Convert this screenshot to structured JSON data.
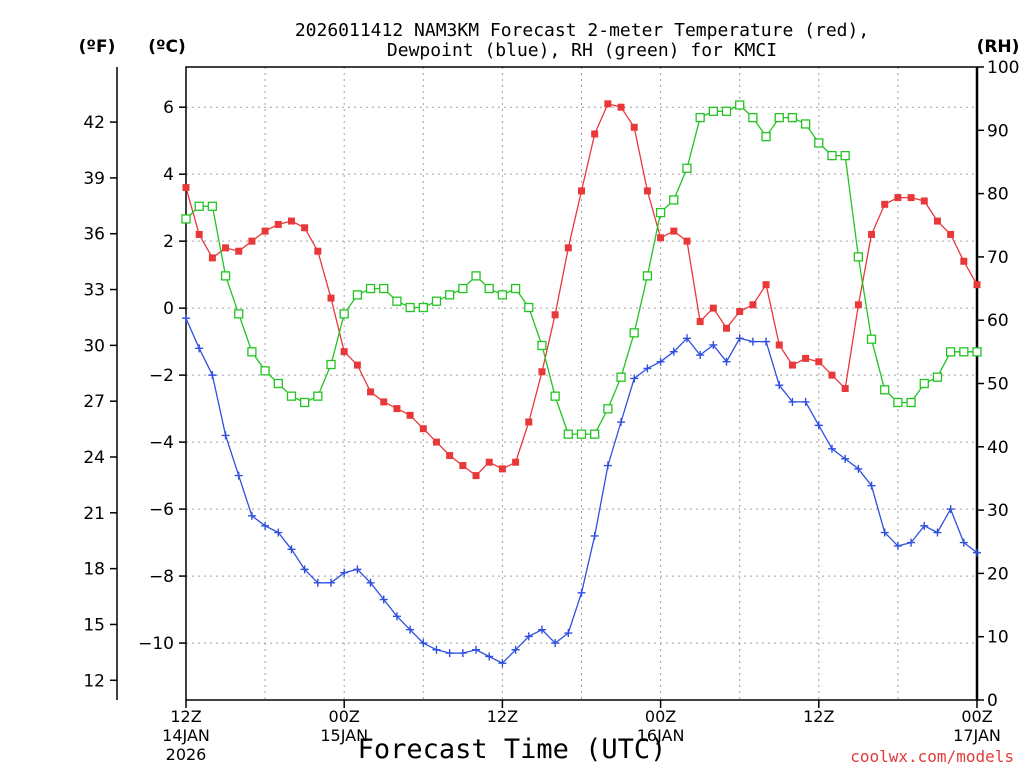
{
  "chart_data": {
    "type": "line",
    "title_line1": "2026011412 NAM3KM Forecast 2-meter Temperature (red),",
    "title_line2": "Dewpoint (blue), RH (green) for KMCI",
    "xlabel": "Forecast Time (UTC)",
    "left_unit_f": "(ºF)",
    "left_unit_c": "(ºC)",
    "right_unit": "(RH)",
    "credit": "coolwx.com/models",
    "x_range_hours": [
      0,
      60
    ],
    "x_ticks": [
      {
        "hour": 0,
        "line1": "12Z",
        "line2": "14JAN",
        "line3": "2026"
      },
      {
        "hour": 12,
        "line1": "00Z",
        "line2": "15JAN",
        "line3": ""
      },
      {
        "hour": 24,
        "line1": "12Z",
        "line2": "",
        "line3": ""
      },
      {
        "hour": 36,
        "line1": "00Z",
        "line2": "16JAN",
        "line3": ""
      },
      {
        "hour": 48,
        "line1": "12Z",
        "line2": "",
        "line3": ""
      },
      {
        "hour": 60,
        "line1": "00Z",
        "line2": "17JAN",
        "line3": ""
      }
    ],
    "y_celsius_range": [
      -11.7,
      7.2
    ],
    "y_celsius_ticks": [
      "6",
      "4",
      "2",
      "0",
      "−2",
      "−4",
      "−6",
      "−8",
      "−10"
    ],
    "y_celsius_tick_values": [
      6,
      4,
      2,
      0,
      -2,
      -4,
      -6,
      -8,
      -10
    ],
    "y_fahrenheit_ticks": [
      "42",
      "39",
      "36",
      "33",
      "30",
      "27",
      "24",
      "21",
      "18",
      "15",
      "12"
    ],
    "y_fahrenheit_tick_values": [
      42,
      39,
      36,
      33,
      30,
      27,
      24,
      21,
      18,
      15,
      12
    ],
    "y_rh_range": [
      0,
      100
    ],
    "y_rh_ticks": [
      "100",
      "90",
      "80",
      "70",
      "60",
      "50",
      "40",
      "30",
      "20",
      "10",
      "0"
    ],
    "y_rh_tick_values": [
      100,
      90,
      80,
      70,
      60,
      50,
      40,
      30,
      20,
      10,
      0
    ],
    "series": [
      {
        "name": "Temperature",
        "color": "#e8383a",
        "marker": "filled-square",
        "axis": "celsius",
        "x": [
          0,
          1,
          2,
          3,
          4,
          5,
          6,
          7,
          8,
          9,
          10,
          11,
          12,
          13,
          14,
          15,
          16,
          17,
          18,
          19,
          20,
          21,
          22,
          23,
          24,
          25,
          26,
          27,
          28,
          29,
          30,
          31,
          32,
          33,
          34,
          35,
          36,
          37,
          38,
          39,
          40,
          41,
          42,
          43,
          44,
          45,
          46,
          47,
          48,
          49,
          50,
          51,
          52,
          53,
          54,
          55,
          56,
          57,
          58,
          59,
          60
        ],
        "values": [
          3.6,
          2.2,
          1.5,
          1.8,
          1.7,
          2.0,
          2.3,
          2.5,
          2.6,
          2.4,
          1.7,
          0.3,
          -1.3,
          -1.7,
          -2.5,
          -2.8,
          -3.0,
          -3.2,
          -3.6,
          -4.0,
          -4.4,
          -4.7,
          -5.0,
          -4.6,
          -4.8,
          -4.6,
          -3.4,
          -1.9,
          -0.2,
          1.8,
          3.5,
          5.2,
          6.1,
          6.0,
          5.4,
          3.5,
          2.1,
          2.3,
          2.0,
          -0.4,
          0.0,
          -0.6,
          -0.1,
          0.1,
          0.7,
          -1.1,
          -1.7,
          -1.5,
          -1.6,
          -2.0,
          -2.4,
          0.1,
          2.2,
          3.1,
          3.3,
          3.3,
          3.2,
          2.6,
          2.2,
          1.4,
          0.7
        ]
      },
      {
        "name": "Dewpoint",
        "color": "#2f4fe0",
        "marker": "plus",
        "axis": "celsius",
        "x": [
          0,
          1,
          2,
          3,
          4,
          5,
          6,
          7,
          8,
          9,
          10,
          11,
          12,
          13,
          14,
          15,
          16,
          17,
          18,
          19,
          20,
          21,
          22,
          23,
          24,
          25,
          26,
          27,
          28,
          29,
          30,
          31,
          32,
          33,
          34,
          35,
          36,
          37,
          38,
          39,
          40,
          41,
          42,
          43,
          44,
          45,
          46,
          47,
          48,
          49,
          50,
          51,
          52,
          53,
          54,
          55,
          56,
          57,
          58,
          59,
          60
        ],
        "values": [
          -0.3,
          -1.2,
          -2.0,
          -3.8,
          -5.0,
          -6.2,
          -6.5,
          -6.7,
          -7.2,
          -7.8,
          -8.2,
          -8.2,
          -7.9,
          -7.8,
          -8.2,
          -8.7,
          -9.2,
          -9.6,
          -10.0,
          -10.2,
          -10.3,
          -10.3,
          -10.2,
          -10.4,
          -10.6,
          -10.2,
          -9.8,
          -9.6,
          -10.0,
          -9.7,
          -8.5,
          -6.8,
          -4.7,
          -3.4,
          -2.1,
          -1.8,
          -1.6,
          -1.3,
          -0.9,
          -1.4,
          -1.1,
          -1.6,
          -0.9,
          -1.0,
          -1.0,
          -2.3,
          -2.8,
          -2.8,
          -3.5,
          -4.2,
          -4.5,
          -4.8,
          -5.3,
          -6.7,
          -7.1,
          -7.0,
          -6.5,
          -6.7,
          -6.0,
          -7.0,
          -7.3
        ]
      },
      {
        "name": "RH",
        "color": "#22c422",
        "marker": "open-square",
        "axis": "rh",
        "x": [
          0,
          1,
          2,
          3,
          4,
          5,
          6,
          7,
          8,
          9,
          10,
          11,
          12,
          13,
          14,
          15,
          16,
          17,
          18,
          19,
          20,
          21,
          22,
          23,
          24,
          25,
          26,
          27,
          28,
          29,
          30,
          31,
          32,
          33,
          34,
          35,
          36,
          37,
          38,
          39,
          40,
          41,
          42,
          43,
          44,
          45,
          46,
          47,
          48,
          49,
          50,
          51,
          52,
          53,
          54,
          55,
          56,
          57,
          58,
          59,
          60
        ],
        "values": [
          76,
          78,
          78,
          67,
          61,
          55,
          52,
          50,
          48,
          47,
          48,
          53,
          61,
          64,
          65,
          65,
          63,
          62,
          62,
          63,
          64,
          65,
          67,
          65,
          64,
          65,
          62,
          56,
          48,
          42,
          42,
          42,
          46,
          51,
          58,
          67,
          77,
          79,
          84,
          92,
          93,
          93,
          94,
          92,
          89,
          92,
          92,
          91,
          88,
          86,
          86,
          70,
          57,
          49,
          47,
          47,
          50,
          51,
          55,
          55,
          55
        ]
      }
    ]
  }
}
